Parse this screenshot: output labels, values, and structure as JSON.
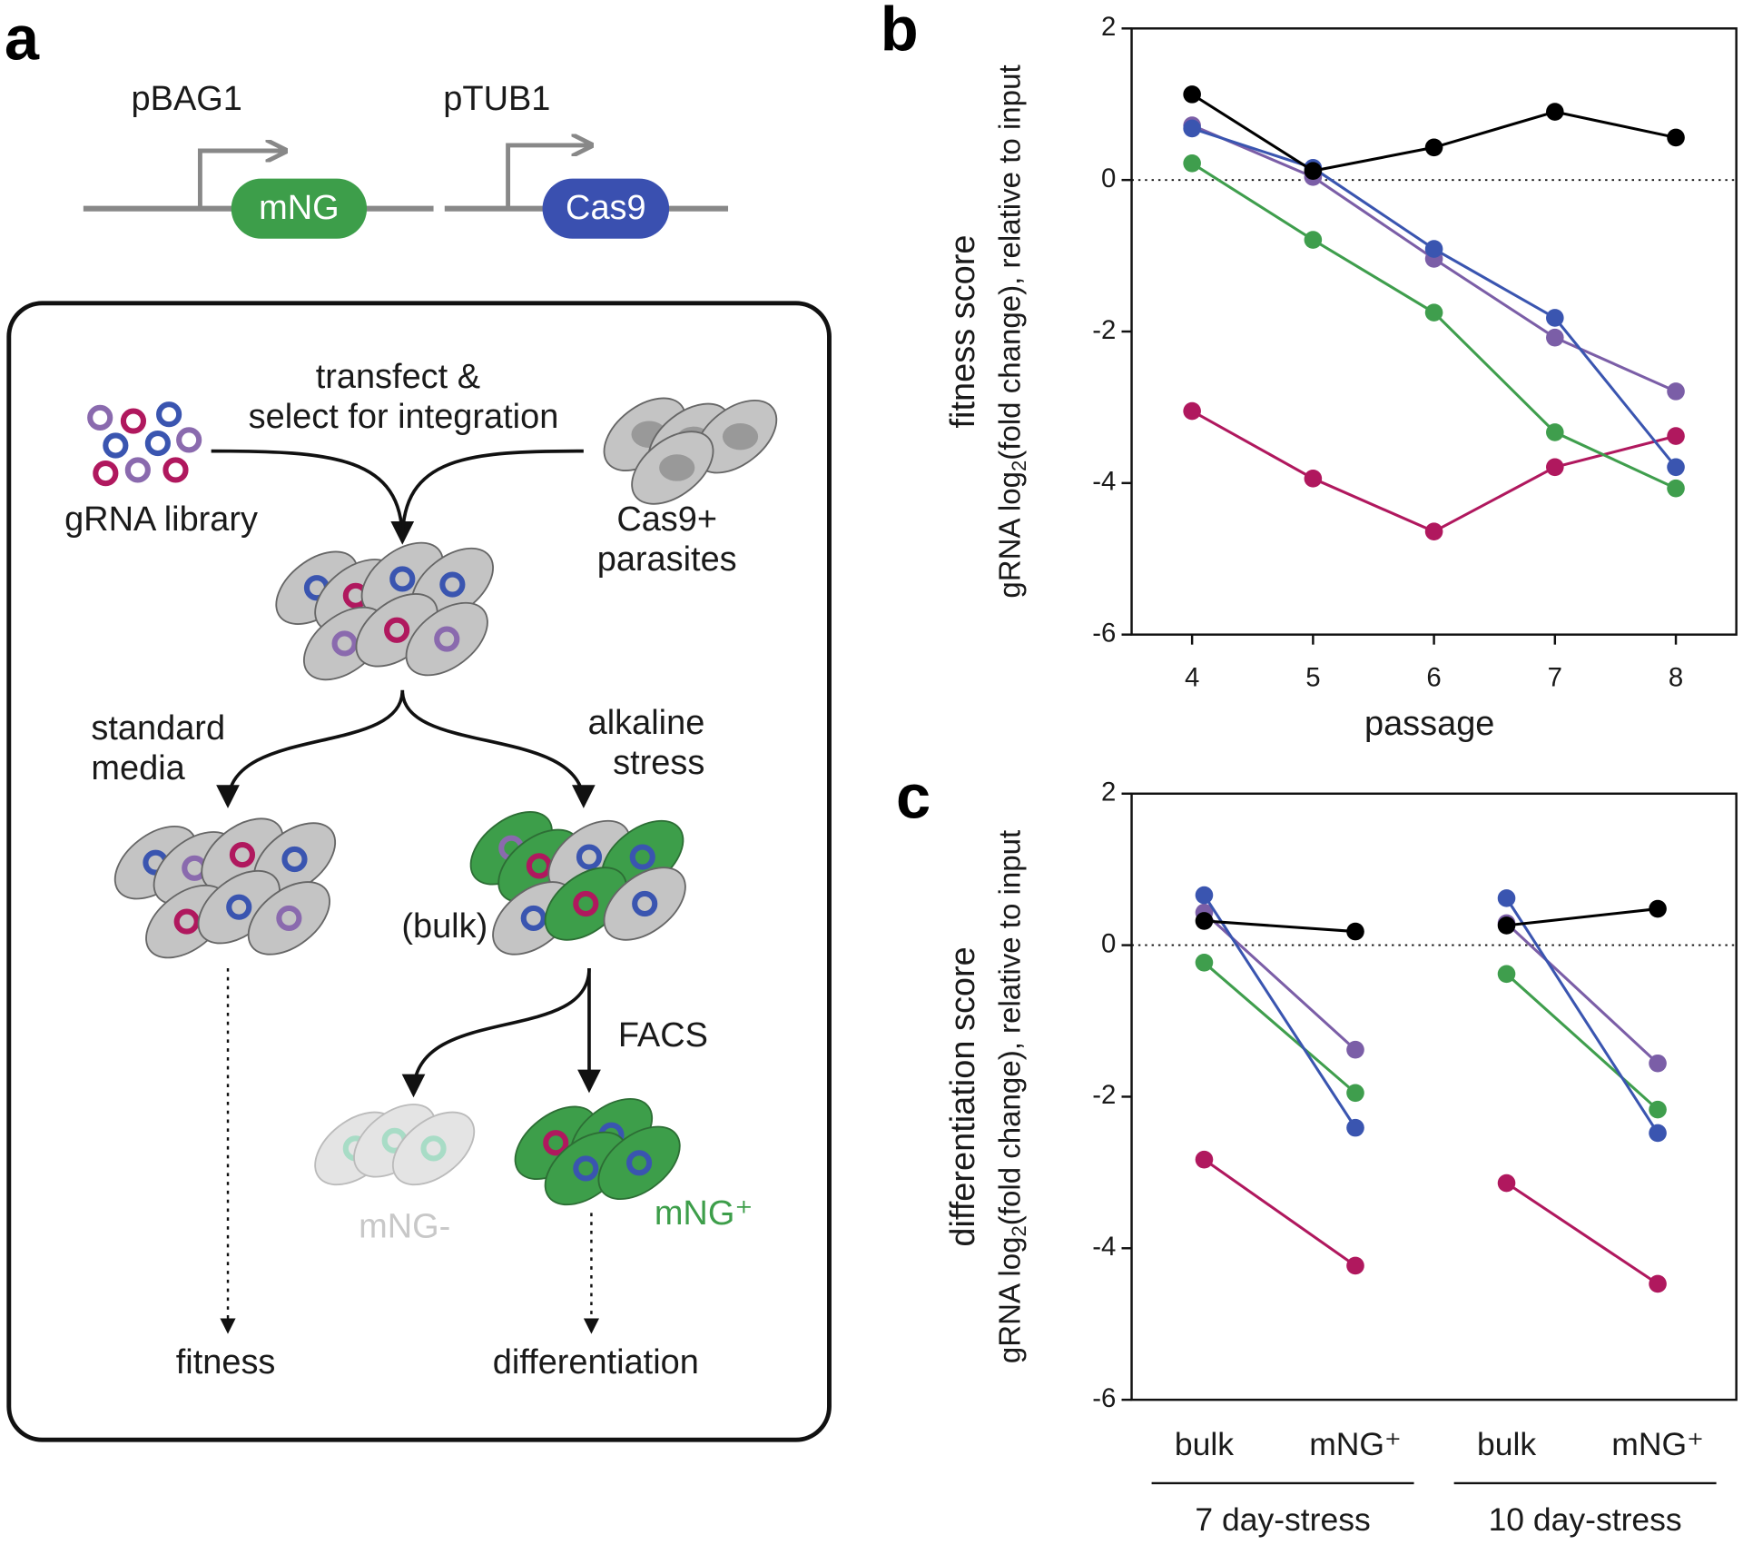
{
  "panel_labels": [
    "a",
    "b",
    "c"
  ],
  "construct": {
    "promoter1": "pBAG1",
    "gene1": "mNG",
    "promoter2": "pTUB1",
    "gene2": "Cas9"
  },
  "workflow": {
    "transfect_line1": "transfect &",
    "transfect_line2": "select for integration",
    "library": "gRNA library",
    "parasites_line1": "Cas9+",
    "parasites_line2": "parasites",
    "standard_line1": "standard",
    "standard_line2": "media",
    "alkaline_line1": "alkaline",
    "alkaline_line2": "stress",
    "bulk": "(bulk)",
    "facs": "FACS",
    "negative": "mNG-",
    "positive": "mNG⁺",
    "readout1": "fitness",
    "readout2": "differentiation"
  },
  "chart_data": [
    {
      "type": "line",
      "xlabel": "passage",
      "ylabel": "fitness score",
      "ylabel2": {
        "before": "gRNA log",
        "sub": "2",
        "after": "(fold change), relative to input"
      },
      "x": [
        4,
        5,
        6,
        7,
        8
      ],
      "xlim": [
        3.5,
        8.5
      ],
      "xticks": [
        4,
        5,
        6,
        7,
        8
      ],
      "ylim": [
        -6,
        2
      ],
      "yticks": [
        -6,
        -4,
        -2,
        0,
        2
      ],
      "reference_line": 0,
      "series": [
        {
          "color": "#b0185e",
          "values": [
            -3.05,
            -3.94,
            -4.64,
            -3.79,
            -3.38
          ]
        },
        {
          "color": "#3f9e4d",
          "values": [
            0.22,
            -0.79,
            -1.75,
            -3.33,
            -4.07
          ]
        },
        {
          "color": "#7b5ea7",
          "values": [
            0.72,
            0.04,
            -1.04,
            -2.08,
            -2.79
          ]
        },
        {
          "color": "#3a55b0",
          "values": [
            0.68,
            0.16,
            -0.91,
            -1.82,
            -3.79
          ]
        },
        {
          "color": "#000000",
          "values": [
            1.13,
            0.12,
            0.43,
            0.9,
            0.56
          ]
        }
      ]
    },
    {
      "type": "line",
      "ylabel": "differentiation score",
      "ylabel2": {
        "before": "gRNA log",
        "sub": "2",
        "after": "(fold change), relative to input"
      },
      "categories": [
        "bulk",
        "mNG⁺",
        "bulk",
        "mNG⁺"
      ],
      "groups": [
        "7 day-stress",
        "10 day-stress"
      ],
      "ylim": [
        -6,
        2
      ],
      "yticks": [
        -6,
        -4,
        -2,
        0,
        2
      ],
      "reference_line": 0,
      "series": [
        {
          "color": "#b0185e",
          "values": [
            -2.83,
            -4.23,
            -3.14,
            -4.47
          ]
        },
        {
          "color": "#3f9e4d",
          "values": [
            -0.23,
            -1.95,
            -0.38,
            -2.17
          ]
        },
        {
          "color": "#7b5ea7",
          "values": [
            0.43,
            -1.38,
            0.29,
            -1.56
          ]
        },
        {
          "color": "#3a55b0",
          "values": [
            0.66,
            -2.41,
            0.62,
            -2.48
          ]
        },
        {
          "color": "#000000",
          "values": [
            0.32,
            0.18,
            0.26,
            0.48
          ]
        }
      ]
    }
  ]
}
